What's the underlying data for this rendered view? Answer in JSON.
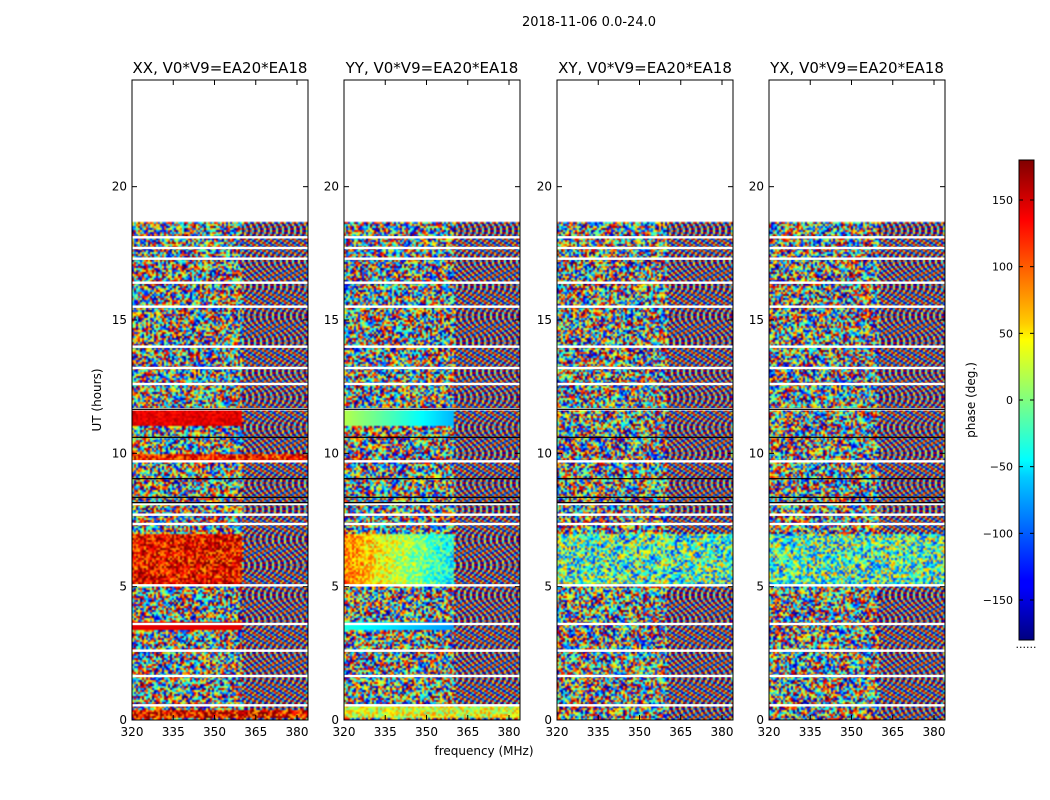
{
  "chart_data": {
    "type": "heatmap",
    "title": "2018-11-06 0.0-24.0",
    "xlabel": "frequency (MHz)",
    "ylabel": "UT (hours)",
    "xlim": [
      320,
      384
    ],
    "ylim": [
      0,
      24
    ],
    "x_ticks": [
      320,
      335,
      350,
      365,
      380
    ],
    "y_ticks": [
      0,
      5,
      10,
      15,
      20
    ],
    "data_extent_hours": [
      0,
      18.7
    ],
    "colormap": "jet",
    "colorbar": {
      "label": "phase (deg.)",
      "range": [
        -180,
        180
      ],
      "ticks": [
        -150,
        -100,
        -50,
        0,
        50,
        100,
        150
      ],
      "tick_labels": [
        "−150",
        "−100",
        "−50",
        "0",
        "50",
        "100",
        "150"
      ],
      "footer": "......"
    },
    "panels": [
      {
        "name": "XX",
        "title": "XX, V0*V9=EA20*EA18",
        "style": "xx"
      },
      {
        "name": "YY",
        "title": "YY, V0*V9=EA20*EA18",
        "style": "yy"
      },
      {
        "name": "XY",
        "title": "XY, V0*V9=EA20*EA18",
        "style": "noise"
      },
      {
        "name": "YX",
        "title": "YX, V0*V9=EA20*EA18",
        "style": "noise"
      }
    ],
    "gaps_hours": [
      0.55,
      1.65,
      2.6,
      3.6,
      5.05,
      7.35,
      7.7,
      8.1,
      9.7,
      11.65,
      12.6,
      13.2,
      14.0,
      15.5,
      16.4,
      17.3,
      17.7,
      18.1
    ],
    "black_lines_hours": [
      8.15,
      8.35,
      9.05,
      10.6,
      11.65
    ]
  },
  "colors": {
    "axis": "#000000",
    "background": "#ffffff",
    "gap": "#ffffff"
  }
}
